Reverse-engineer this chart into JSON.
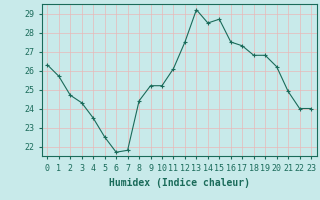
{
  "x": [
    0,
    1,
    2,
    3,
    4,
    5,
    6,
    7,
    8,
    9,
    10,
    11,
    12,
    13,
    14,
    15,
    16,
    17,
    18,
    19,
    20,
    21,
    22,
    23
  ],
  "y": [
    26.3,
    25.7,
    24.7,
    24.3,
    23.5,
    22.5,
    21.7,
    21.8,
    24.4,
    25.2,
    25.2,
    26.1,
    27.5,
    29.2,
    28.5,
    28.7,
    27.5,
    27.3,
    26.8,
    26.8,
    26.2,
    24.9,
    24.0,
    24.0
  ],
  "xlim": [
    -0.5,
    23.5
  ],
  "ylim": [
    21.5,
    29.5
  ],
  "yticks": [
    22,
    23,
    24,
    25,
    26,
    27,
    28,
    29
  ],
  "xticks": [
    0,
    1,
    2,
    3,
    4,
    5,
    6,
    7,
    8,
    9,
    10,
    11,
    12,
    13,
    14,
    15,
    16,
    17,
    18,
    19,
    20,
    21,
    22,
    23
  ],
  "xlabel": "Humidex (Indice chaleur)",
  "line_color": "#1a6b5a",
  "marker": "+",
  "marker_size": 3,
  "bg_color": "#c8eaea",
  "grid_color": "#e8b8b8",
  "tick_color": "#1a6b5a",
  "label_color": "#1a6b5a",
  "tick_fontsize": 6,
  "xlabel_fontsize": 7
}
